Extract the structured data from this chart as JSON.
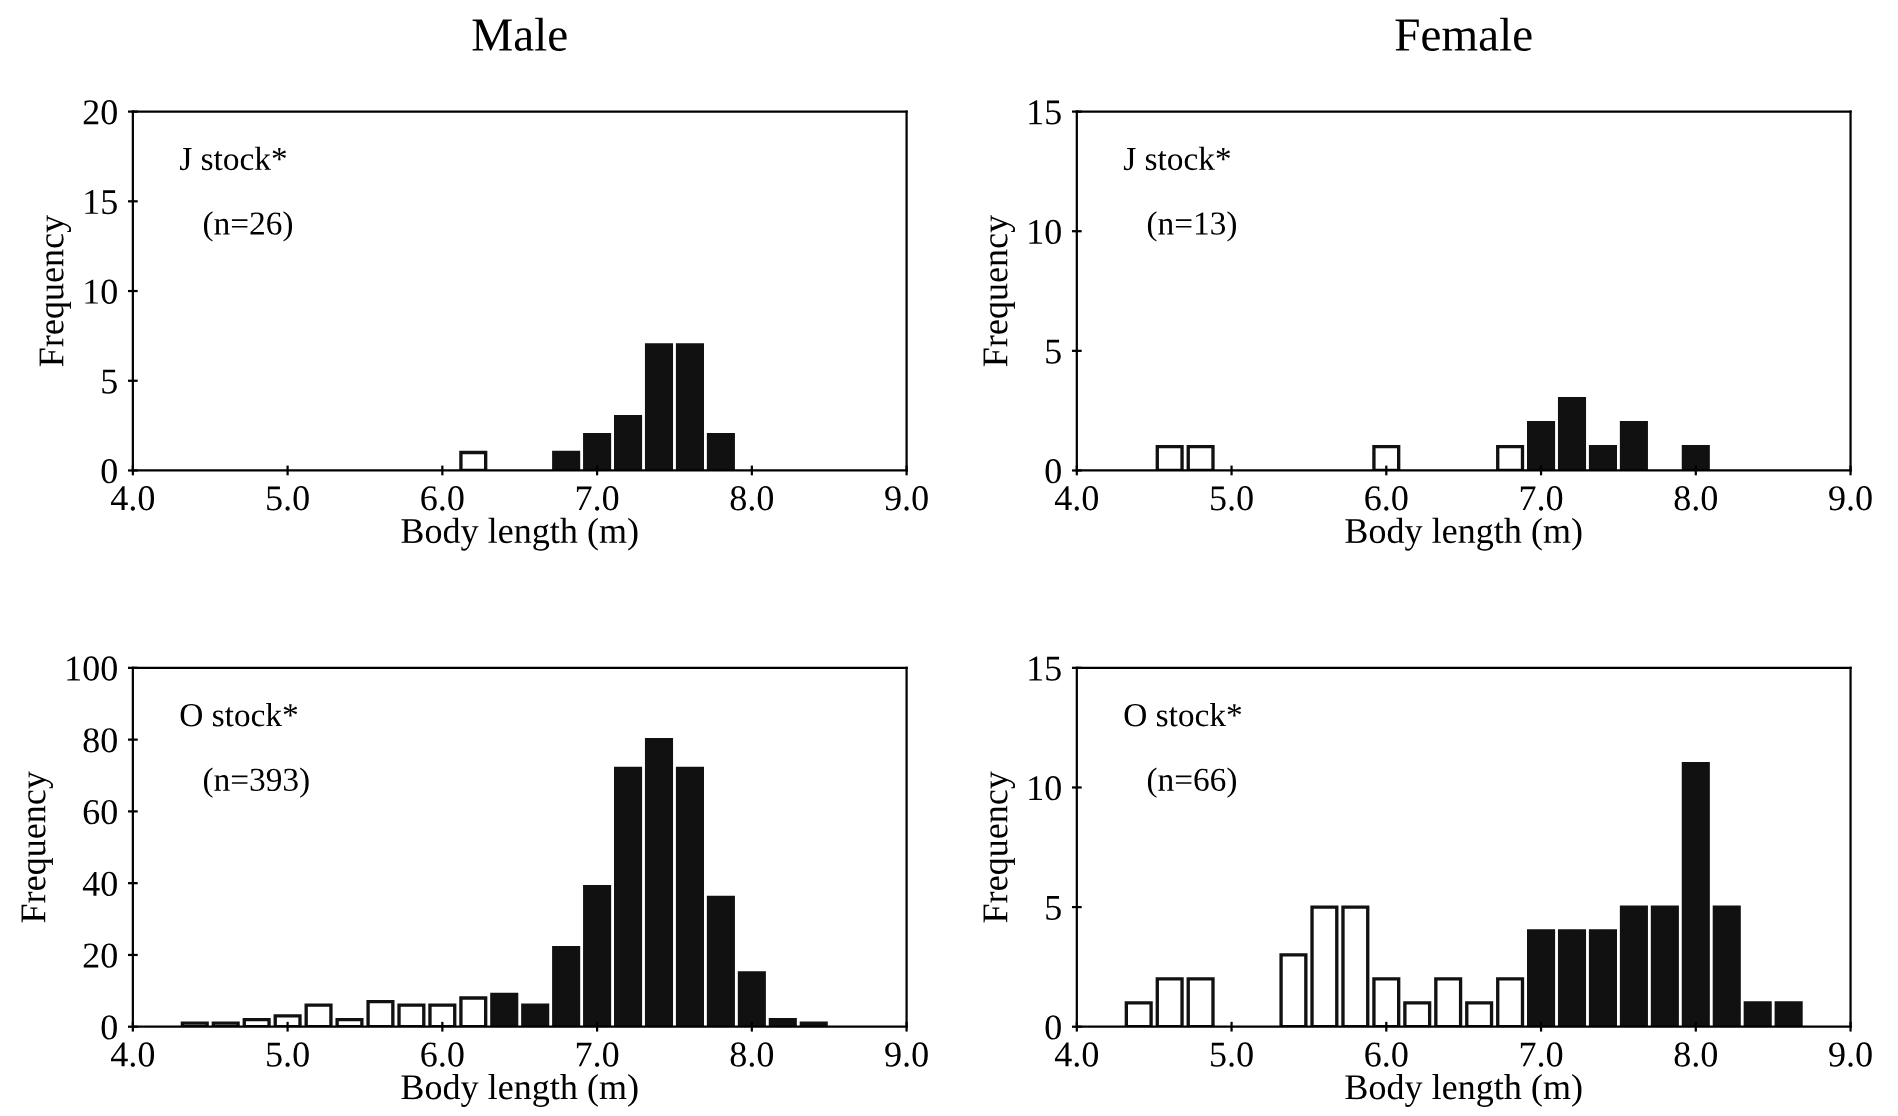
{
  "chart_data": [
    {
      "type": "histogram",
      "title": "Male",
      "xlabel": "Body length (m)",
      "ylabel": "Frequency",
      "annotations": [
        "J stock*",
        "(n=26)"
      ],
      "bins": [
        4.1,
        4.3,
        4.5,
        4.7,
        4.9,
        5.1,
        5.3,
        5.5,
        5.7,
        5.9,
        6.1,
        6.3,
        6.5,
        6.7,
        6.9,
        7.1,
        7.3,
        7.5,
        7.7,
        7.9,
        8.1,
        8.3,
        8.5,
        8.7,
        8.9
      ],
      "series": [
        {
          "color": "#ffffff",
          "values": [
            null,
            null,
            null,
            null,
            null,
            null,
            null,
            null,
            null,
            null,
            1,
            null,
            null,
            null,
            null,
            null,
            null,
            null,
            null,
            null,
            null,
            null,
            null,
            null
          ]
        },
        {
          "color": "#111111",
          "values": [
            null,
            null,
            null,
            null,
            null,
            null,
            null,
            null,
            null,
            null,
            null,
            null,
            null,
            1,
            2,
            3,
            7,
            7,
            2,
            null,
            null,
            null,
            null,
            null
          ]
        }
      ],
      "xlim": [
        4.0,
        9.0
      ],
      "ylim": [
        0,
        20
      ],
      "xticks": [
        {
          "value": 4,
          "label": "4.0"
        },
        {
          "value": 5,
          "label": "5.0"
        },
        {
          "value": 6,
          "label": "6.0"
        },
        {
          "value": 7,
          "label": "7.0"
        },
        {
          "value": 8,
          "label": "8.0"
        },
        {
          "value": 9,
          "label": "9.0"
        }
      ],
      "yticks": [
        0,
        5,
        10,
        15,
        20
      ]
    },
    {
      "type": "histogram",
      "title": "Female",
      "xlabel": "Body length (m)",
      "ylabel": "Frequency",
      "annotations": [
        "J stock*",
        "(n=13)"
      ],
      "bins": [
        4.1,
        4.3,
        4.5,
        4.7,
        4.9,
        5.1,
        5.3,
        5.5,
        5.7,
        5.9,
        6.1,
        6.3,
        6.5,
        6.7,
        6.9,
        7.1,
        7.3,
        7.5,
        7.7,
        7.9,
        8.1,
        8.3,
        8.5,
        8.7,
        8.9
      ],
      "series": [
        {
          "color": "#ffffff",
          "values": [
            null,
            null,
            1,
            1,
            null,
            null,
            null,
            null,
            null,
            1,
            null,
            null,
            null,
            1,
            null,
            null,
            null,
            null,
            null,
            null,
            null,
            null,
            null,
            null
          ]
        },
        {
          "color": "#111111",
          "values": [
            null,
            null,
            null,
            null,
            null,
            null,
            null,
            null,
            null,
            null,
            null,
            null,
            null,
            null,
            2,
            3,
            1,
            2,
            null,
            1,
            null,
            null,
            null,
            null
          ]
        }
      ],
      "xlim": [
        4.0,
        9.0
      ],
      "ylim": [
        0,
        15
      ],
      "xticks": [
        {
          "value": 4,
          "label": "4.0"
        },
        {
          "value": 5,
          "label": "5.0"
        },
        {
          "value": 6,
          "label": "6.0"
        },
        {
          "value": 7,
          "label": "7.0"
        },
        {
          "value": 8,
          "label": "8.0"
        },
        {
          "value": 9,
          "label": "9.0"
        }
      ],
      "yticks": [
        0,
        5,
        10,
        15
      ]
    },
    {
      "type": "histogram",
      "xlabel": "Body length (m)",
      "ylabel": "Frequency",
      "annotations": [
        "O stock*",
        "(n=393)"
      ],
      "bins": [
        4.1,
        4.3,
        4.5,
        4.7,
        4.9,
        5.1,
        5.3,
        5.5,
        5.7,
        5.9,
        6.1,
        6.3,
        6.5,
        6.7,
        6.9,
        7.1,
        7.3,
        7.5,
        7.7,
        7.9,
        8.1,
        8.3,
        8.5,
        8.7,
        8.9
      ],
      "series": [
        {
          "color": "#ffffff",
          "values": [
            null,
            1,
            1,
            2,
            3,
            6,
            2,
            7,
            6,
            6,
            8,
            null,
            null,
            null,
            null,
            null,
            null,
            null,
            null,
            null,
            null,
            null,
            null,
            null
          ]
        },
        {
          "color": "#111111",
          "values": [
            null,
            null,
            null,
            null,
            null,
            null,
            null,
            null,
            null,
            null,
            null,
            9,
            6,
            22,
            39,
            72,
            80,
            72,
            36,
            15,
            2,
            1,
            null,
            null
          ]
        }
      ],
      "xlim": [
        4.0,
        9.0
      ],
      "ylim": [
        0,
        100
      ],
      "xticks": [
        {
          "value": 4,
          "label": "4.0"
        },
        {
          "value": 5,
          "label": "5.0"
        },
        {
          "value": 6,
          "label": "6.0"
        },
        {
          "value": 7,
          "label": "7.0"
        },
        {
          "value": 8,
          "label": "8.0"
        },
        {
          "value": 9,
          "label": "9.0"
        }
      ],
      "yticks": [
        0,
        20,
        40,
        60,
        80,
        100
      ]
    },
    {
      "type": "histogram",
      "xlabel": "Body length (m)",
      "ylabel": "Frequency",
      "annotations": [
        "O stock*",
        "(n=66)"
      ],
      "bins": [
        4.1,
        4.3,
        4.5,
        4.7,
        4.9,
        5.1,
        5.3,
        5.5,
        5.7,
        5.9,
        6.1,
        6.3,
        6.5,
        6.7,
        6.9,
        7.1,
        7.3,
        7.5,
        7.7,
        7.9,
        8.1,
        8.3,
        8.5,
        8.7,
        8.9
      ],
      "series": [
        {
          "color": "#ffffff",
          "values": [
            null,
            1,
            2,
            2,
            null,
            null,
            3,
            5,
            5,
            2,
            1,
            2,
            1,
            2,
            null,
            null,
            null,
            null,
            null,
            null,
            null,
            null,
            null,
            null
          ]
        },
        {
          "color": "#111111",
          "values": [
            null,
            null,
            null,
            null,
            null,
            null,
            null,
            null,
            null,
            null,
            null,
            null,
            null,
            null,
            4,
            4,
            4,
            5,
            5,
            11,
            5,
            1,
            1,
            null
          ]
        }
      ],
      "xlim": [
        4.0,
        9.0
      ],
      "ylim": [
        0,
        15
      ],
      "xticks": [
        {
          "value": 4,
          "label": "4.0"
        },
        {
          "value": 5,
          "label": "5.0"
        },
        {
          "value": 6,
          "label": "6.0"
        },
        {
          "value": 7,
          "label": "7.0"
        },
        {
          "value": 8,
          "label": "8.0"
        },
        {
          "value": 9,
          "label": "9.0"
        }
      ],
      "yticks": [
        0,
        5,
        10,
        15
      ]
    }
  ]
}
